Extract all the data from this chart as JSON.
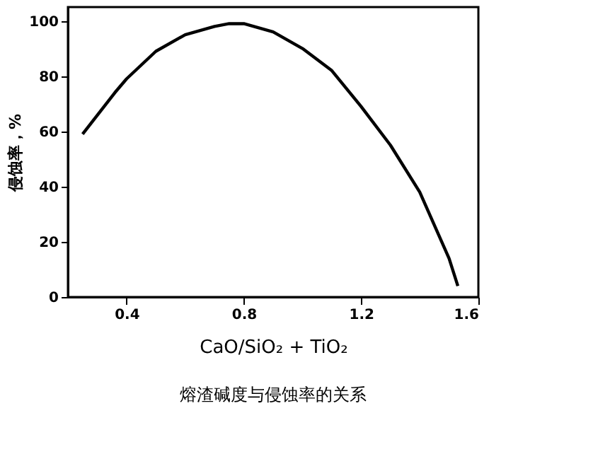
{
  "chart_data": {
    "type": "line",
    "title": "熔渣碱度与侵蚀率的关系",
    "xlabel": "CaO/SiO₂ + TiO₂",
    "ylabel": "侵蚀率，%",
    "x": [
      0.25,
      0.36,
      0.4,
      0.5,
      0.6,
      0.7,
      0.75,
      0.8,
      0.9,
      1.0,
      1.1,
      1.2,
      1.3,
      1.4,
      1.5,
      1.53
    ],
    "series": [
      {
        "color": "#000000",
        "values": [
          59,
          74,
          79,
          89,
          95,
          98,
          99,
          99,
          96,
          90,
          82,
          69,
          55,
          38,
          14,
          4
        ]
      }
    ],
    "xlim": [
      0.2,
      1.6
    ],
    "xticks": [
      0.4,
      0.8,
      1.2,
      1.6
    ],
    "ylim": [
      0,
      105
    ],
    "yticks": [
      0,
      20,
      40,
      60,
      80,
      100
    ],
    "grid": false,
    "marker": "none",
    "line_style": "solid"
  }
}
